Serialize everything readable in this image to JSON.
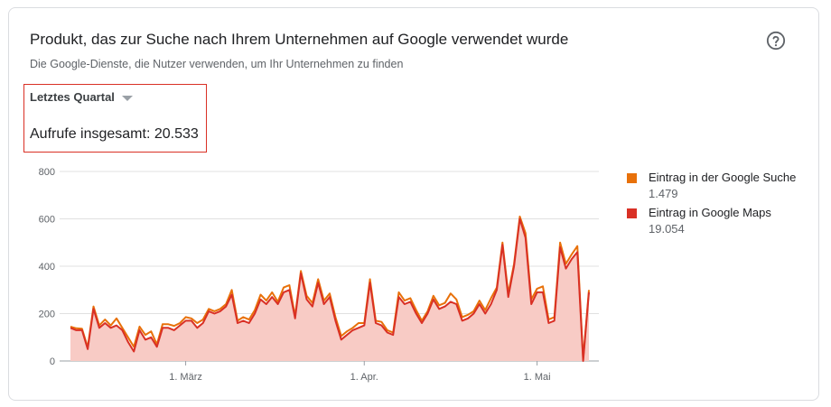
{
  "header": {
    "title": "Produkt, das zur Suche nach Ihrem Unternehmen auf Google verwendet wurde",
    "subtitle": "Die Google-Dienste, die Nutzer verwenden, um Ihr Unternehmen zu finden"
  },
  "filter": {
    "range_label": "Letztes Quartal"
  },
  "summary": {
    "total_label": "Aufrufe insgesamt: 20.533"
  },
  "colors": {
    "search": "#e8710a",
    "maps": "#d93025",
    "maps_fill": "#f8cbc5",
    "highlight_border": "#d93025"
  },
  "icons": {
    "help": "help-circle-icon",
    "dropdown": "caret-down-icon"
  },
  "legend": [
    {
      "label": "Eintrag in der Google Suche",
      "value": "1.479",
      "color": "#e8710a"
    },
    {
      "label": "Eintrag in Google Maps",
      "value": "19.054",
      "color": "#d93025"
    }
  ],
  "chart_data": {
    "type": "area",
    "title": "",
    "xlabel": "",
    "ylabel": "",
    "ylim": [
      0,
      800
    ],
    "yticks": [
      0,
      200,
      400,
      600,
      800
    ],
    "yticklabels": [
      "0",
      "200",
      "400",
      "600",
      "800"
    ],
    "xticks": [
      {
        "index": 20,
        "label": "1. März"
      },
      {
        "index": 51,
        "label": "1. Apr."
      },
      {
        "index": 81,
        "label": "1. Mai"
      }
    ],
    "grid": true,
    "legend_position": "right",
    "series": [
      {
        "name": "Eintrag in Google Maps",
        "values": [
          140,
          130,
          130,
          50,
          220,
          140,
          160,
          140,
          150,
          130,
          80,
          40,
          130,
          90,
          100,
          60,
          140,
          140,
          130,
          150,
          170,
          170,
          140,
          160,
          210,
          200,
          210,
          230,
          280,
          160,
          170,
          160,
          200,
          260,
          240,
          270,
          240,
          290,
          300,
          180,
          370,
          260,
          230,
          330,
          240,
          270,
          170,
          90,
          110,
          130,
          140,
          150,
          330,
          160,
          150,
          120,
          110,
          270,
          240,
          250,
          200,
          160,
          200,
          260,
          220,
          230,
          250,
          240,
          170,
          180,
          200,
          240,
          200,
          240,
          300,
          490,
          270,
          400,
          600,
          520,
          240,
          290,
          290,
          160,
          170,
          480,
          390,
          430,
          460,
          0,
          290
        ]
      },
      {
        "name": "Eintrag in der Google Suche",
        "values": [
          145,
          138,
          136,
          58,
          230,
          150,
          175,
          150,
          180,
          140,
          100,
          60,
          145,
          110,
          125,
          70,
          155,
          155,
          148,
          160,
          185,
          180,
          160,
          175,
          220,
          210,
          220,
          240,
          300,
          170,
          185,
          175,
          215,
          280,
          255,
          290,
          250,
          310,
          320,
          190,
          380,
          275,
          245,
          345,
          255,
          285,
          185,
          105,
          125,
          140,
          160,
          160,
          345,
          170,
          165,
          130,
          120,
          290,
          255,
          265,
          215,
          170,
          210,
          275,
          235,
          245,
          285,
          260,
          185,
          195,
          210,
          255,
          215,
          265,
          310,
          500,
          285,
          410,
          610,
          540,
          260,
          305,
          315,
          175,
          185,
          500,
          410,
          450,
          485,
          10,
          300
        ]
      }
    ]
  }
}
